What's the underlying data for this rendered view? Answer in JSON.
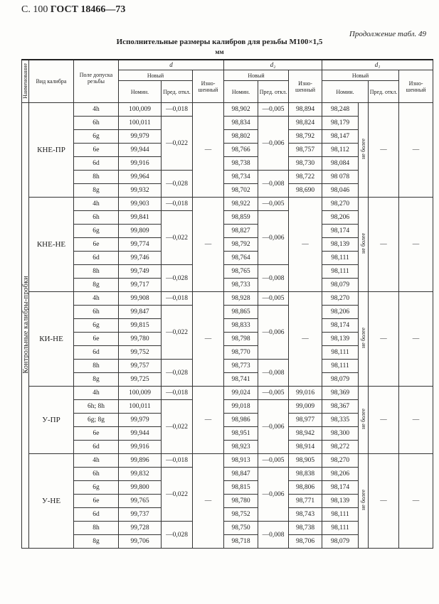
{
  "page_header": {
    "page": "С. 100",
    "standard": "ГОСТ 18466—73"
  },
  "continuation": "Продолжение табл. 49",
  "title": "Исполнительные размеры калибров для резьбы M100×1,5",
  "unit": "мм",
  "headers": {
    "name": "Наименование",
    "gauge_type": "Вид калибра",
    "tolerance_field": "Поле допуска резьбы",
    "d": "d",
    "d2": "d₂",
    "d1": "d₁",
    "new": "Новый",
    "nominal": "Номин.",
    "deviation": "Пред. откл.",
    "worn": "Изно-шенный"
  },
  "category": "Контрольные калибры-пробки",
  "groups": [
    {
      "name": "КНЕ-ПР",
      "rows": [
        {
          "field": "4h",
          "d_nom": "100,009",
          "d2_nom": "98,902",
          "d2_worn": "98,894",
          "d1_nom": "98,248"
        },
        {
          "field": "6h",
          "d_nom": "100,011",
          "d2_nom": "98,834",
          "d2_worn": "98,824",
          "d1_nom": "98,179"
        },
        {
          "field": "6g",
          "d_nom": "99,979",
          "d2_nom": "98,802",
          "d2_worn": "98,792",
          "d1_nom": "98,147"
        },
        {
          "field": "6e",
          "d_nom": "99,944",
          "d2_nom": "98,766",
          "d2_worn": "98,757",
          "d1_nom": "98,112"
        },
        {
          "field": "6d",
          "d_nom": "99,916",
          "d2_nom": "98,738",
          "d2_worn": "98,730",
          "d1_nom": "98,084"
        },
        {
          "field": "8h",
          "d_nom": "99,964",
          "d2_nom": "98,734",
          "d2_worn": "98,722",
          "d1_nom": "98 078"
        },
        {
          "field": "8g",
          "d_nom": "99,932",
          "d2_nom": "98,702",
          "d2_worn": "98,690",
          "d1_nom": "98,046"
        }
      ],
      "d_dev": [
        {
          "value": "—0,018",
          "rows": 1
        },
        {
          "value": "—0,022",
          "rows": 4
        },
        {
          "value": "—0,028",
          "rows": 2
        }
      ],
      "d2_dev": [
        {
          "value": "—0,005",
          "rows": 1
        },
        {
          "value": "—0,006",
          "rows": 4
        },
        {
          "value": "—0,008",
          "rows": 2
        }
      ],
      "d_worn": "—",
      "d2_worn_all": null,
      "d1_note": "не более",
      "d1_dev": "—",
      "d1_worn": "—"
    },
    {
      "name": "КНЕ-НЕ",
      "rows": [
        {
          "field": "4h",
          "d_nom": "99,903",
          "d2_nom": "98,922",
          "d1_nom": "98,270"
        },
        {
          "field": "6h",
          "d_nom": "99,841",
          "d2_nom": "98,859",
          "d1_nom": "98,206"
        },
        {
          "field": "6g",
          "d_nom": "99,809",
          "d2_nom": "98,827",
          "d1_nom": "98,174"
        },
        {
          "field": "6e",
          "d_nom": "99,774",
          "d2_nom": "98,792",
          "d1_nom": "98,139"
        },
        {
          "field": "6d",
          "d_nom": "99,746",
          "d2_nom": "98,764",
          "d1_nom": "98,111"
        },
        {
          "field": "8h",
          "d_nom": "99,749",
          "d2_nom": "98,765",
          "d1_nom": "98,111"
        },
        {
          "field": "8g",
          "d_nom": "99,717",
          "d2_nom": "98,733",
          "d1_nom": "98,079"
        }
      ],
      "d_dev": [
        {
          "value": "—0,018",
          "rows": 1
        },
        {
          "value": "—0,022",
          "rows": 4
        },
        {
          "value": "—0,028",
          "rows": 2
        }
      ],
      "d2_dev": [
        {
          "value": "—0,005",
          "rows": 1
        },
        {
          "value": "—0,006",
          "rows": 4
        },
        {
          "value": "—0,008",
          "rows": 2
        }
      ],
      "d_worn": "—",
      "d2_worn_all": "—",
      "d1_note": "не более",
      "d1_dev": "—",
      "d1_worn": "—"
    },
    {
      "name": "КИ-НЕ",
      "rows": [
        {
          "field": "4h",
          "d_nom": "99,908",
          "d2_nom": "98,928",
          "d1_nom": "98,270"
        },
        {
          "field": "6h",
          "d_nom": "99,847",
          "d2_nom": "98,865",
          "d1_nom": "98,206"
        },
        {
          "field": "6g",
          "d_nom": "99,815",
          "d2_nom": "98,833",
          "d1_nom": "98,174"
        },
        {
          "field": "6e",
          "d_nom": "99,780",
          "d2_nom": "98,798",
          "d1_nom": "98,139"
        },
        {
          "field": "6d",
          "d_nom": "99,752",
          "d2_nom": "98,770",
          "d1_nom": "98,111"
        },
        {
          "field": "8h",
          "d_nom": "99,757",
          "d2_nom": "98,773",
          "d1_nom": "98,111"
        },
        {
          "field": "8g",
          "d_nom": "99,725",
          "d2_nom": "98,741",
          "d1_nom": "98,079"
        }
      ],
      "d_dev": [
        {
          "value": "—0,018",
          "rows": 1
        },
        {
          "value": "—0,022",
          "rows": 4
        },
        {
          "value": "—0,028",
          "rows": 2
        }
      ],
      "d2_dev": [
        {
          "value": "—0,005",
          "rows": 1
        },
        {
          "value": "—0,006",
          "rows": 4
        },
        {
          "value": "—0,008",
          "rows": 2
        }
      ],
      "d_worn": "—",
      "d2_worn_all": "—",
      "d1_note": "не более",
      "d1_dev": "—",
      "d1_worn": "—"
    },
    {
      "name": "У-ПР",
      "rows": [
        {
          "field": "4h",
          "d_nom": "100,009",
          "d2_nom": "99,024",
          "d2_worn": "99,016",
          "d1_nom": "98,369"
        },
        {
          "field": "6h; 8h",
          "d_nom": "100,011",
          "d2_nom": "99,018",
          "d2_worn": "99,009",
          "d1_nom": "98,367"
        },
        {
          "field": "6g; 8g",
          "d_nom": "99,979",
          "d2_nom": "98,986",
          "d2_worn": "98,977",
          "d1_nom": "98,335"
        },
        {
          "field": "6e",
          "d_nom": "99,944",
          "d2_nom": "98,951",
          "d2_worn": "98,942",
          "d1_nom": "98,300"
        },
        {
          "field": "6d",
          "d_nom": "99,916",
          "d2_nom": "98,923",
          "d2_worn": "98,914",
          "d1_nom": "98,272"
        }
      ],
      "d_dev": [
        {
          "value": "—0,018",
          "rows": 1
        },
        {
          "value": "—0,022",
          "rows": 4
        }
      ],
      "d2_dev": [
        {
          "value": "—0,005",
          "rows": 1
        },
        {
          "value": "—0,006",
          "rows": 4
        }
      ],
      "d_worn": "—",
      "d2_worn_all": null,
      "d1_note": "не более",
      "d1_dev": "—",
      "d1_worn": "—"
    },
    {
      "name": "У-НЕ",
      "rows": [
        {
          "field": "4h",
          "d_nom": "99,896",
          "d2_nom": "98,913",
          "d2_worn": "98,905",
          "d1_nom": "98,270"
        },
        {
          "field": "6h",
          "d_nom": "99,832",
          "d2_nom": "98,847",
          "d2_worn": "98,838",
          "d1_nom": "98,206"
        },
        {
          "field": "6g",
          "d_nom": "99,800",
          "d2_nom": "98,815",
          "d2_worn": "98,806",
          "d1_nom": "98,174"
        },
        {
          "field": "6e",
          "d_nom": "99,765",
          "d2_nom": "98,780",
          "d2_worn": "98,771",
          "d1_nom": "98,139"
        },
        {
          "field": "6d",
          "d_nom": "99,737",
          "d2_nom": "98,752",
          "d2_worn": "98,743",
          "d1_nom": "98,111"
        },
        {
          "field": "8h",
          "d_nom": "99,728",
          "d2_nom": "98,750",
          "d2_worn": "98,738",
          "d1_nom": "98,111"
        },
        {
          "field": "8g",
          "d_nom": "99,706",
          "d2_nom": "98,718",
          "d2_worn": "98,706",
          "d1_nom": "98,079"
        }
      ],
      "d_dev": [
        {
          "value": "—0,018",
          "rows": 1
        },
        {
          "value": "—0,022",
          "rows": 4
        },
        {
          "value": "—0,028",
          "rows": 2
        }
      ],
      "d2_dev": [
        {
          "value": "—0,005",
          "rows": 1
        },
        {
          "value": "—0,006",
          "rows": 4
        },
        {
          "value": "—0,008",
          "rows": 2
        }
      ],
      "d_worn": "—",
      "d2_worn_all": null,
      "d1_note": "не более",
      "d1_dev": "—",
      "d1_worn": "—"
    }
  ]
}
